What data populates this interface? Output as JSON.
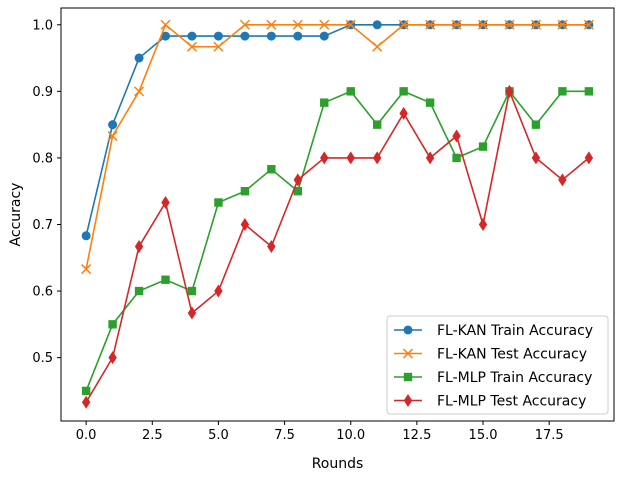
{
  "chart_data": {
    "type": "line",
    "title": "",
    "xlabel": "Rounds",
    "ylabel": "Accuracy",
    "x": [
      0,
      1,
      2,
      3,
      4,
      5,
      6,
      7,
      8,
      9,
      10,
      11,
      12,
      13,
      14,
      15,
      16,
      17,
      18,
      19
    ],
    "xlim": [
      -0.95,
      19.95
    ],
    "ylim": [
      0.4048,
      1.0252
    ],
    "xticks": [
      0.0,
      2.5,
      5.0,
      7.5,
      10.0,
      12.5,
      15.0,
      17.5
    ],
    "xtick_labels": [
      "0.0",
      "2.5",
      "5.0",
      "7.5",
      "10.0",
      "12.5",
      "15.0",
      "17.5"
    ],
    "yticks": [
      0.5,
      0.6,
      0.7,
      0.8,
      0.9,
      1.0
    ],
    "ytick_labels": [
      "0.5",
      "0.6",
      "0.7",
      "0.8",
      "0.9",
      "1.0"
    ],
    "grid": false,
    "legend_position": "lower-right",
    "series": [
      {
        "name": "FL-KAN Train Accuracy",
        "color": "#1f77b4",
        "marker": "circle",
        "values": [
          0.683,
          0.85,
          0.95,
          0.983,
          0.983,
          0.983,
          0.983,
          0.983,
          0.983,
          0.983,
          1.0,
          1.0,
          1.0,
          1.0,
          1.0,
          1.0,
          1.0,
          1.0,
          1.0,
          1.0
        ]
      },
      {
        "name": "FL-KAN Test Accuracy",
        "color": "#ff7f0e",
        "marker": "x",
        "values": [
          0.633,
          0.833,
          0.9,
          1.0,
          0.967,
          0.967,
          1.0,
          1.0,
          1.0,
          1.0,
          1.0,
          0.967,
          1.0,
          1.0,
          1.0,
          1.0,
          1.0,
          1.0,
          1.0,
          1.0
        ]
      },
      {
        "name": "FL-MLP Train Accuracy",
        "color": "#2ca02c",
        "marker": "square",
        "values": [
          0.45,
          0.55,
          0.6,
          0.617,
          0.6,
          0.733,
          0.75,
          0.783,
          0.75,
          0.883,
          0.9,
          0.85,
          0.9,
          0.883,
          0.8,
          0.817,
          0.9,
          0.85,
          0.9,
          0.9
        ]
      },
      {
        "name": "FL-MLP Test Accuracy",
        "color": "#d62728",
        "marker": "diamond",
        "values": [
          0.433,
          0.5,
          0.667,
          0.733,
          0.567,
          0.6,
          0.7,
          0.667,
          0.767,
          0.8,
          0.8,
          0.8,
          0.867,
          0.8,
          0.833,
          0.7,
          0.9,
          0.8,
          0.767,
          0.8
        ]
      }
    ]
  }
}
